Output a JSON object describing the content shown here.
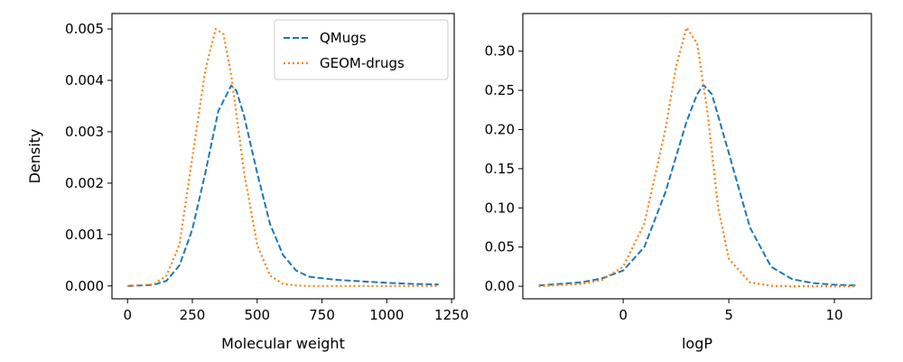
{
  "chart_data": [
    {
      "type": "line",
      "xlabel": "Molecular weight",
      "ylabel": "Density",
      "xlim": [
        -60,
        1260
      ],
      "ylim": [
        -0.00025,
        0.0053
      ],
      "xticks": [
        0,
        250,
        500,
        750,
        1000,
        1250
      ],
      "xtick_labels": [
        "0",
        "250",
        "500",
        "750",
        "1000",
        "1250"
      ],
      "yticks": [
        0.0,
        0.001,
        0.002,
        0.003,
        0.004,
        0.005
      ],
      "ytick_labels": [
        "0.000",
        "0.001",
        "0.002",
        "0.003",
        "0.004",
        "0.005"
      ],
      "grid": false,
      "legend": "top-right",
      "series": [
        {
          "name": "QMugs",
          "color": "#1f77b4",
          "dash": "dashed",
          "x": [
            0,
            100,
            150,
            200,
            250,
            300,
            350,
            400,
            420,
            450,
            500,
            550,
            600,
            650,
            700,
            800,
            900,
            1000,
            1100,
            1200
          ],
          "y": [
            0.0,
            2e-05,
            0.0001,
            0.0004,
            0.0011,
            0.0022,
            0.0034,
            0.0039,
            0.0038,
            0.0033,
            0.0022,
            0.0012,
            0.0006,
            0.0003,
            0.00018,
            0.00012,
            9e-05,
            6e-05,
            4e-05,
            3e-05
          ]
        },
        {
          "name": "GEOM-drugs",
          "color": "#ff7f0e",
          "dash": "dotted",
          "x": [
            0,
            100,
            150,
            200,
            250,
            300,
            340,
            370,
            400,
            450,
            500,
            550,
            600,
            650,
            700,
            800,
            1000,
            1200
          ],
          "y": [
            0.0,
            3e-05,
            0.0002,
            0.0008,
            0.0025,
            0.0042,
            0.005,
            0.0049,
            0.0041,
            0.0022,
            0.0008,
            0.0002,
            4e-05,
            1e-05,
            0.0,
            0.0,
            0.0,
            0.0
          ]
        }
      ]
    },
    {
      "type": "line",
      "xlabel": "logP",
      "ylabel": "",
      "xlim": [
        -4.75,
        11.75
      ],
      "ylim": [
        -0.016,
        0.348
      ],
      "xticks": [
        0,
        5,
        10
      ],
      "xtick_labels": [
        "0",
        "5",
        "10"
      ],
      "yticks": [
        0.0,
        0.05,
        0.1,
        0.15,
        0.2,
        0.25,
        0.3
      ],
      "ytick_labels": [
        "0.00",
        "0.05",
        "0.10",
        "0.15",
        "0.20",
        "0.25",
        "0.30"
      ],
      "grid": false,
      "series": [
        {
          "name": "QMugs",
          "color": "#1f77b4",
          "dash": "dashed",
          "x": [
            -4,
            -2,
            -1,
            0,
            1,
            2,
            3,
            3.5,
            3.8,
            4.2,
            5,
            6,
            7,
            8,
            9,
            10,
            11
          ],
          "y": [
            0.001,
            0.005,
            0.01,
            0.02,
            0.05,
            0.12,
            0.21,
            0.245,
            0.257,
            0.245,
            0.17,
            0.075,
            0.025,
            0.009,
            0.004,
            0.002,
            0.001
          ],
          "_type": "line"
        },
        {
          "name": "GEOM-drugs",
          "color": "#ff7f0e",
          "dash": "dotted",
          "x": [
            -4,
            -2,
            -1,
            0,
            1,
            2,
            2.5,
            3,
            3.5,
            4,
            4.5,
            5,
            6,
            7,
            8,
            9,
            10,
            11
          ],
          "y": [
            0.0,
            0.003,
            0.008,
            0.025,
            0.08,
            0.2,
            0.28,
            0.33,
            0.31,
            0.22,
            0.1,
            0.035,
            0.005,
            0.0005,
            0.0,
            0.0,
            0.0,
            0.0
          ]
        }
      ]
    }
  ]
}
